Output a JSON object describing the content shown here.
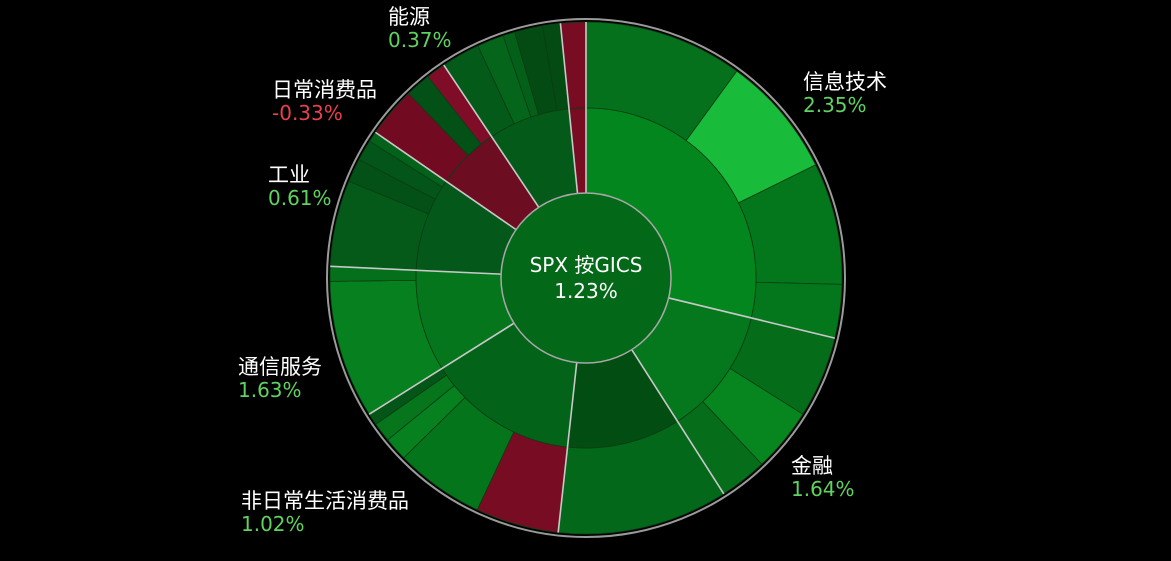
{
  "chart_data": {
    "type": "sunburst",
    "center": {
      "title": "SPX 按GICS",
      "value": "1.23%"
    },
    "colors": {
      "up": "#5fd35f",
      "down": "#e8414d"
    },
    "sectors": [
      {
        "name": "信息技术",
        "change": 2.35,
        "label": "2.35%",
        "weight": 30.7,
        "inner": "#04861e",
        "subs": [
          {
            "weight": 10.7,
            "color": "#05711c"
          },
          {
            "weight": 8.2,
            "color": "#19bb3a"
          },
          {
            "weight": 8.2,
            "color": "#04761c"
          },
          {
            "weight": 3.6,
            "color": "#04761c"
          }
        ]
      },
      {
        "name": "金融",
        "change": 1.64,
        "label": "1.64%",
        "weight": 13.0,
        "inner": "#05771d",
        "subs": [
          {
            "weight": 5.5,
            "color": "#056d1a"
          },
          {
            "weight": 4.3,
            "color": "#07861f"
          },
          {
            "weight": 3.2,
            "color": "#066d1a"
          }
        ]
      },
      {
        "name": "",
        "change": 0.0,
        "label": "",
        "weight": 11.5,
        "inner": "#024d12",
        "subs": [
          {
            "weight": 11.5,
            "color": "#03681a"
          }
        ]
      },
      {
        "name": "非日常生活消费品",
        "change": 1.02,
        "label": "1.02%",
        "weight": 15.3,
        "inner": "#036419",
        "subs": [
          {
            "weight": 5.6,
            "color": "#780c23"
          },
          {
            "weight": 6.0,
            "color": "#05751c"
          },
          {
            "weight": 1.6,
            "color": "#07801f"
          },
          {
            "weight": 1.3,
            "color": "#06751c"
          },
          {
            "weight": 0.8,
            "color": "#035617"
          }
        ]
      },
      {
        "name": "通信服务",
        "change": 1.63,
        "label": "1.63%",
        "weight": 10.3,
        "inner": "#06761d",
        "subs": [
          {
            "weight": 9.3,
            "color": "#07801f"
          },
          {
            "weight": 1.0,
            "color": "#05701b"
          }
        ]
      },
      {
        "name": "工业",
        "change": 0.61,
        "label": "0.61%",
        "weight": 9.5,
        "inner": "#04581a",
        "subs": [
          {
            "weight": 5.8,
            "color": "#055a19"
          },
          {
            "weight": 1.6,
            "color": "#035117"
          },
          {
            "weight": 1.4,
            "color": "#04551a"
          },
          {
            "weight": 0.7,
            "color": "#036219"
          }
        ]
      },
      {
        "name": "日常消费品",
        "change": -0.33,
        "label": "-0.33%",
        "weight": 6.4,
        "inner": "#6c0d21",
        "subs": [
          {
            "weight": 3.4,
            "color": "#720b22"
          },
          {
            "weight": 1.7,
            "color": "#035117"
          },
          {
            "weight": 1.3,
            "color": "#7f0d27"
          }
        ]
      },
      {
        "name": "能源",
        "change": 0.37,
        "label": "0.37%",
        "weight": 8.3,
        "inner": "#045a18",
        "subs": [
          {
            "weight": 2.6,
            "color": "#045a18"
          },
          {
            "weight": 1.8,
            "color": "#05661b"
          },
          {
            "weight": 0.8,
            "color": "#045f19"
          },
          {
            "weight": 1.9,
            "color": "#034b13"
          },
          {
            "weight": 1.2,
            "color": "#034b13"
          }
        ]
      },
      {
        "name": "",
        "change": -0.5,
        "label": "",
        "weight": 1.7,
        "inner": "#780c23",
        "subs": [
          {
            "weight": 1.7,
            "color": "#780c23"
          }
        ]
      }
    ]
  }
}
